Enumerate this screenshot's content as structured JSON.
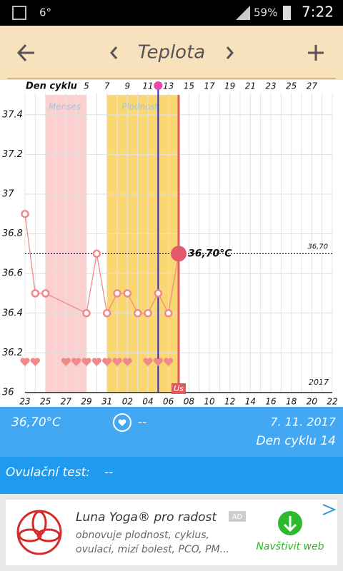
{
  "status_bar": {
    "temperature": "6°",
    "battery": "59%",
    "time": "7:22"
  },
  "header": {
    "title": "Teplota"
  },
  "chart_data": {
    "type": "line",
    "x_axis_title": "Den cyklu",
    "categories": [
      "23",
      null,
      "25",
      null,
      "27",
      null,
      "29",
      null,
      "31",
      null,
      "02",
      null,
      "04",
      null,
      "06",
      null,
      "08",
      null,
      "10",
      null,
      "12",
      null,
      "14",
      null,
      "16",
      null,
      "18",
      null,
      "20",
      null,
      "22"
    ],
    "cycle_days": [
      null,
      null,
      null,
      null,
      null,
      null,
      5,
      null,
      7,
      null,
      9,
      null,
      11,
      null,
      13,
      null,
      15,
      null,
      17,
      null,
      19,
      null,
      21,
      null,
      23,
      null,
      25,
      null,
      27,
      null,
      null
    ],
    "values": [
      36.9,
      36.5,
      36.5,
      null,
      null,
      null,
      36.4,
      36.7,
      36.4,
      36.5,
      36.5,
      36.4,
      36.4,
      36.5,
      36.4,
      36.7,
      null,
      null,
      null,
      null,
      null,
      null,
      null,
      null,
      null,
      null,
      null,
      null,
      null,
      null,
      null
    ],
    "value_labels": [
      null,
      null,
      null,
      null,
      null,
      null,
      null,
      null,
      null,
      null,
      null,
      null,
      null,
      null,
      null,
      "36,70°C",
      null,
      null,
      null,
      null,
      null,
      null,
      null,
      null,
      null,
      null,
      null,
      null,
      null,
      null,
      null
    ],
    "intercourse": [
      true,
      true,
      false,
      false,
      true,
      true,
      true,
      true,
      true,
      true,
      true,
      false,
      true,
      true,
      true,
      false,
      false,
      false,
      false,
      false,
      false,
      false,
      false,
      false,
      false,
      false,
      false,
      false,
      false,
      false,
      false
    ],
    "color": "#f08a8a",
    "ylim": [
      36,
      37.5
    ],
    "yticks": [
      36,
      36.2,
      36.4,
      36.6,
      36.8,
      37,
      37.2,
      37.4
    ],
    "grid": true,
    "reference_line": {
      "value": 36.7,
      "label": "36,70"
    },
    "menses_label": "Menses",
    "fertility_label": "Plodnost",
    "year_label": "2017",
    "today_label": "Us"
  },
  "info": {
    "temperature": "36,70°C",
    "mood": "--",
    "date": "7. 11. 2017",
    "cycle_day": "Den cyklu 14",
    "ovulation_test_label": "Ovulační test:",
    "ovulation_test_value": "--"
  },
  "ad": {
    "title": "Luna Yoga® pro radost",
    "badge": "AD",
    "text_line1": "obnovuje plodnost, cyklus,",
    "text_line2": "ovulaci, mizí bolest, PCO, PM...",
    "button": "Navštivit web"
  }
}
